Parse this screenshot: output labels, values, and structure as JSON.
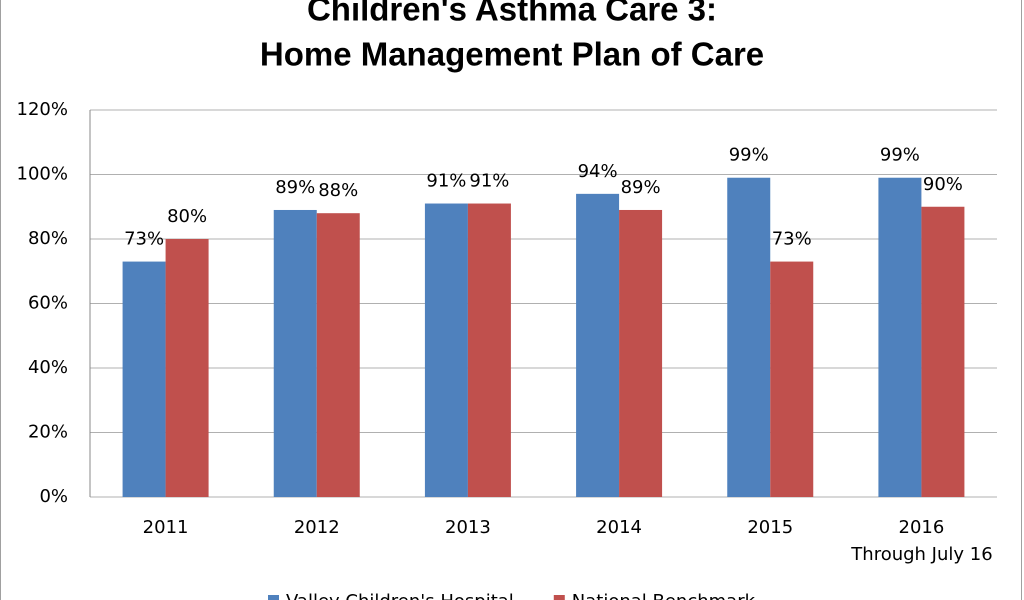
{
  "chart_data": {
    "type": "bar",
    "title_lines": [
      "Children's Asthma Care 3:",
      "Home Management Plan of Care"
    ],
    "categories": [
      "2011",
      "2012",
      "2013",
      "2014",
      "2015",
      "2016"
    ],
    "annotation": "Through July 16",
    "series": [
      {
        "name": "Valley Children's Hospital",
        "color": "#4f81bd",
        "values": [
          73,
          89,
          91,
          94,
          99,
          99
        ],
        "value_labels": [
          "73%",
          "89%",
          "91%",
          "94%",
          "99%",
          "99%"
        ]
      },
      {
        "name": "National Benchmark",
        "color": "#c0504d",
        "values": [
          80,
          88,
          91,
          89,
          73,
          90
        ],
        "value_labels": [
          "80%",
          "88%",
          "91%",
          "89%",
          "73%",
          "90%"
        ]
      }
    ],
    "ylim": [
      0,
      120
    ],
    "yticks": [
      {
        "value": 0,
        "label": "0%"
      },
      {
        "value": 20,
        "label": "20%"
      },
      {
        "value": 40,
        "label": "40%"
      },
      {
        "value": 60,
        "label": "60%"
      },
      {
        "value": 80,
        "label": "80%"
      },
      {
        "value": 100,
        "label": "100%"
      },
      {
        "value": 120,
        "label": "120%"
      }
    ],
    "grid": true
  }
}
